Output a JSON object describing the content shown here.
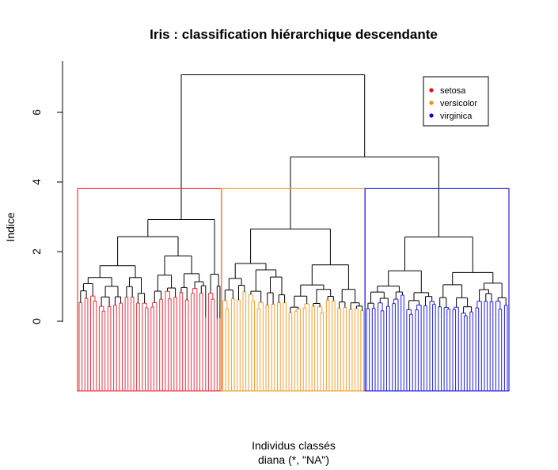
{
  "chart_data": {
    "type": "dendrogram",
    "title": "Iris : classification hiérarchique descendante",
    "xlabel_line1": "Individus classés",
    "xlabel_line2": "diana (*, \"NA\")",
    "ylabel": "Indice",
    "yticks": [
      0,
      2,
      4,
      6
    ],
    "ylim": [
      -2.0,
      7.3
    ],
    "leaf_count": 150,
    "merges": [
      {
        "name": "root",
        "height": 7.08
      },
      {
        "name": "versicolor-virginica",
        "height": 4.72
      },
      {
        "name": "setosa-group",
        "height": 2.92
      },
      {
        "name": "setosa-left",
        "height": 2.43
      },
      {
        "name": "versicolor-group",
        "height": 2.65
      },
      {
        "name": "virginica-group",
        "height": 2.42
      },
      {
        "name": "versicolor-right",
        "height": 1.62
      },
      {
        "name": "versicolor-left",
        "height": 1.66
      }
    ],
    "cut_height": 3.81,
    "clusters": [
      {
        "label": "setosa",
        "color": "#ee3344",
        "leaves": 50
      },
      {
        "label": "versicolor",
        "color": "#f5a030",
        "leaves": 50
      },
      {
        "label": "virginica",
        "color": "#2222dd",
        "leaves": 50
      }
    ],
    "legend": {
      "position": "top-right",
      "entries": [
        {
          "label": "setosa",
          "color": "#ff0000"
        },
        {
          "label": "versicolor",
          "color": "#ff8c00"
        },
        {
          "label": "virginica",
          "color": "#0000ff"
        }
      ]
    }
  }
}
